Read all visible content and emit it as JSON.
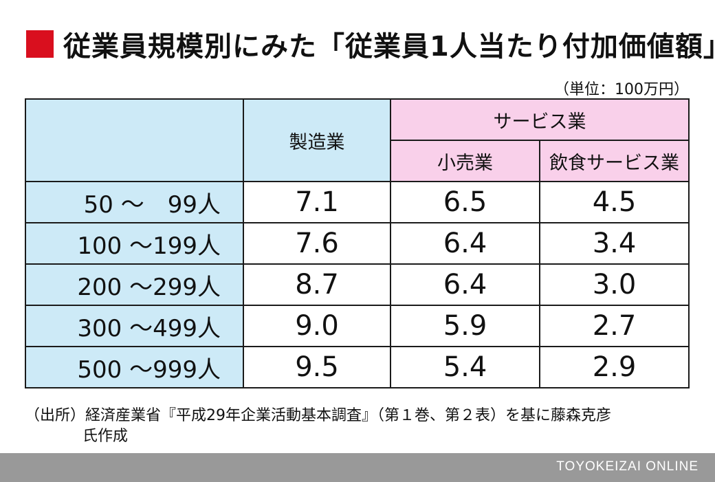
{
  "title": "従業員規模別にみた「従業員1人当たり付加価値額」",
  "unit": "（単位：100万円）",
  "table": {
    "header": {
      "manufacturing": "製造業",
      "service_group": "サービス業",
      "retail": "小売業",
      "food_service": "飲食サービス業"
    },
    "rows": [
      {
        "label": "50 ～　99人",
        "manufacturing": "7.1",
        "retail": "6.5",
        "food_service": "4.5"
      },
      {
        "label": "100 ～199人",
        "manufacturing": "7.6",
        "retail": "6.4",
        "food_service": "3.4"
      },
      {
        "label": "200 ～299人",
        "manufacturing": "8.7",
        "retail": "6.4",
        "food_service": "3.0"
      },
      {
        "label": "300 ～499人",
        "manufacturing": "9.0",
        "retail": "5.9",
        "food_service": "2.7"
      },
      {
        "label": "500 ～999人",
        "manufacturing": "9.5",
        "retail": "5.4",
        "food_service": "2.9"
      }
    ]
  },
  "source": {
    "line1": "（出所）経済産業省『平成29年企業活動基本調査』（第１巻、第２表）を基に藤森克彦",
    "line2": "氏作成"
  },
  "footer": "TOYOKEIZAI ONLINE",
  "colors": {
    "title_square": "#d90f1e",
    "header_blue": "#cdeaf7",
    "header_pink": "#f9d0ea",
    "footer_bar": "#999999"
  }
}
